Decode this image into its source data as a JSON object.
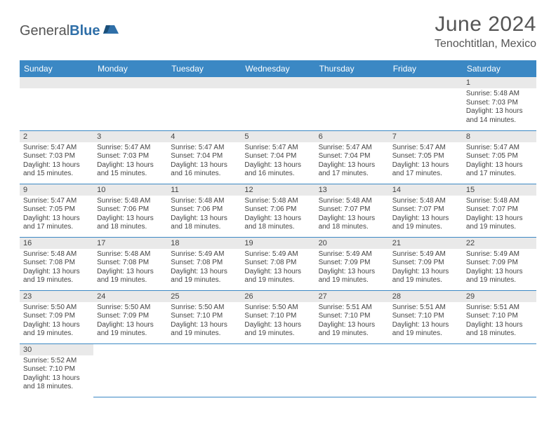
{
  "brand": {
    "part1": "General",
    "part2": "Blue"
  },
  "title": "June 2024",
  "location": "Tenochtitlan, Mexico",
  "colors": {
    "header_bg": "#3b88c4",
    "header_text": "#ffffff",
    "daynum_bg": "#e9e9e9",
    "cell_border": "#3b88c4",
    "body_text": "#444444",
    "title_text": "#555555",
    "brand_blue": "#2f6fa8"
  },
  "weekdays": [
    "Sunday",
    "Monday",
    "Tuesday",
    "Wednesday",
    "Thursday",
    "Friday",
    "Saturday"
  ],
  "weeks": [
    [
      null,
      null,
      null,
      null,
      null,
      null,
      {
        "n": "1",
        "sr": "Sunrise: 5:48 AM",
        "ss": "Sunset: 7:03 PM",
        "d1": "Daylight: 13 hours",
        "d2": "and 14 minutes."
      }
    ],
    [
      {
        "n": "2",
        "sr": "Sunrise: 5:47 AM",
        "ss": "Sunset: 7:03 PM",
        "d1": "Daylight: 13 hours",
        "d2": "and 15 minutes."
      },
      {
        "n": "3",
        "sr": "Sunrise: 5:47 AM",
        "ss": "Sunset: 7:03 PM",
        "d1": "Daylight: 13 hours",
        "d2": "and 15 minutes."
      },
      {
        "n": "4",
        "sr": "Sunrise: 5:47 AM",
        "ss": "Sunset: 7:04 PM",
        "d1": "Daylight: 13 hours",
        "d2": "and 16 minutes."
      },
      {
        "n": "5",
        "sr": "Sunrise: 5:47 AM",
        "ss": "Sunset: 7:04 PM",
        "d1": "Daylight: 13 hours",
        "d2": "and 16 minutes."
      },
      {
        "n": "6",
        "sr": "Sunrise: 5:47 AM",
        "ss": "Sunset: 7:04 PM",
        "d1": "Daylight: 13 hours",
        "d2": "and 17 minutes."
      },
      {
        "n": "7",
        "sr": "Sunrise: 5:47 AM",
        "ss": "Sunset: 7:05 PM",
        "d1": "Daylight: 13 hours",
        "d2": "and 17 minutes."
      },
      {
        "n": "8",
        "sr": "Sunrise: 5:47 AM",
        "ss": "Sunset: 7:05 PM",
        "d1": "Daylight: 13 hours",
        "d2": "and 17 minutes."
      }
    ],
    [
      {
        "n": "9",
        "sr": "Sunrise: 5:47 AM",
        "ss": "Sunset: 7:05 PM",
        "d1": "Daylight: 13 hours",
        "d2": "and 17 minutes."
      },
      {
        "n": "10",
        "sr": "Sunrise: 5:48 AM",
        "ss": "Sunset: 7:06 PM",
        "d1": "Daylight: 13 hours",
        "d2": "and 18 minutes."
      },
      {
        "n": "11",
        "sr": "Sunrise: 5:48 AM",
        "ss": "Sunset: 7:06 PM",
        "d1": "Daylight: 13 hours",
        "d2": "and 18 minutes."
      },
      {
        "n": "12",
        "sr": "Sunrise: 5:48 AM",
        "ss": "Sunset: 7:06 PM",
        "d1": "Daylight: 13 hours",
        "d2": "and 18 minutes."
      },
      {
        "n": "13",
        "sr": "Sunrise: 5:48 AM",
        "ss": "Sunset: 7:07 PM",
        "d1": "Daylight: 13 hours",
        "d2": "and 18 minutes."
      },
      {
        "n": "14",
        "sr": "Sunrise: 5:48 AM",
        "ss": "Sunset: 7:07 PM",
        "d1": "Daylight: 13 hours",
        "d2": "and 19 minutes."
      },
      {
        "n": "15",
        "sr": "Sunrise: 5:48 AM",
        "ss": "Sunset: 7:07 PM",
        "d1": "Daylight: 13 hours",
        "d2": "and 19 minutes."
      }
    ],
    [
      {
        "n": "16",
        "sr": "Sunrise: 5:48 AM",
        "ss": "Sunset: 7:08 PM",
        "d1": "Daylight: 13 hours",
        "d2": "and 19 minutes."
      },
      {
        "n": "17",
        "sr": "Sunrise: 5:48 AM",
        "ss": "Sunset: 7:08 PM",
        "d1": "Daylight: 13 hours",
        "d2": "and 19 minutes."
      },
      {
        "n": "18",
        "sr": "Sunrise: 5:49 AM",
        "ss": "Sunset: 7:08 PM",
        "d1": "Daylight: 13 hours",
        "d2": "and 19 minutes."
      },
      {
        "n": "19",
        "sr": "Sunrise: 5:49 AM",
        "ss": "Sunset: 7:08 PM",
        "d1": "Daylight: 13 hours",
        "d2": "and 19 minutes."
      },
      {
        "n": "20",
        "sr": "Sunrise: 5:49 AM",
        "ss": "Sunset: 7:09 PM",
        "d1": "Daylight: 13 hours",
        "d2": "and 19 minutes."
      },
      {
        "n": "21",
        "sr": "Sunrise: 5:49 AM",
        "ss": "Sunset: 7:09 PM",
        "d1": "Daylight: 13 hours",
        "d2": "and 19 minutes."
      },
      {
        "n": "22",
        "sr": "Sunrise: 5:49 AM",
        "ss": "Sunset: 7:09 PM",
        "d1": "Daylight: 13 hours",
        "d2": "and 19 minutes."
      }
    ],
    [
      {
        "n": "23",
        "sr": "Sunrise: 5:50 AM",
        "ss": "Sunset: 7:09 PM",
        "d1": "Daylight: 13 hours",
        "d2": "and 19 minutes."
      },
      {
        "n": "24",
        "sr": "Sunrise: 5:50 AM",
        "ss": "Sunset: 7:09 PM",
        "d1": "Daylight: 13 hours",
        "d2": "and 19 minutes."
      },
      {
        "n": "25",
        "sr": "Sunrise: 5:50 AM",
        "ss": "Sunset: 7:10 PM",
        "d1": "Daylight: 13 hours",
        "d2": "and 19 minutes."
      },
      {
        "n": "26",
        "sr": "Sunrise: 5:50 AM",
        "ss": "Sunset: 7:10 PM",
        "d1": "Daylight: 13 hours",
        "d2": "and 19 minutes."
      },
      {
        "n": "27",
        "sr": "Sunrise: 5:51 AM",
        "ss": "Sunset: 7:10 PM",
        "d1": "Daylight: 13 hours",
        "d2": "and 19 minutes."
      },
      {
        "n": "28",
        "sr": "Sunrise: 5:51 AM",
        "ss": "Sunset: 7:10 PM",
        "d1": "Daylight: 13 hours",
        "d2": "and 19 minutes."
      },
      {
        "n": "29",
        "sr": "Sunrise: 5:51 AM",
        "ss": "Sunset: 7:10 PM",
        "d1": "Daylight: 13 hours",
        "d2": "and 18 minutes."
      }
    ],
    [
      {
        "n": "30",
        "sr": "Sunrise: 5:52 AM",
        "ss": "Sunset: 7:10 PM",
        "d1": "Daylight: 13 hours",
        "d2": "and 18 minutes."
      },
      null,
      null,
      null,
      null,
      null,
      null
    ]
  ]
}
